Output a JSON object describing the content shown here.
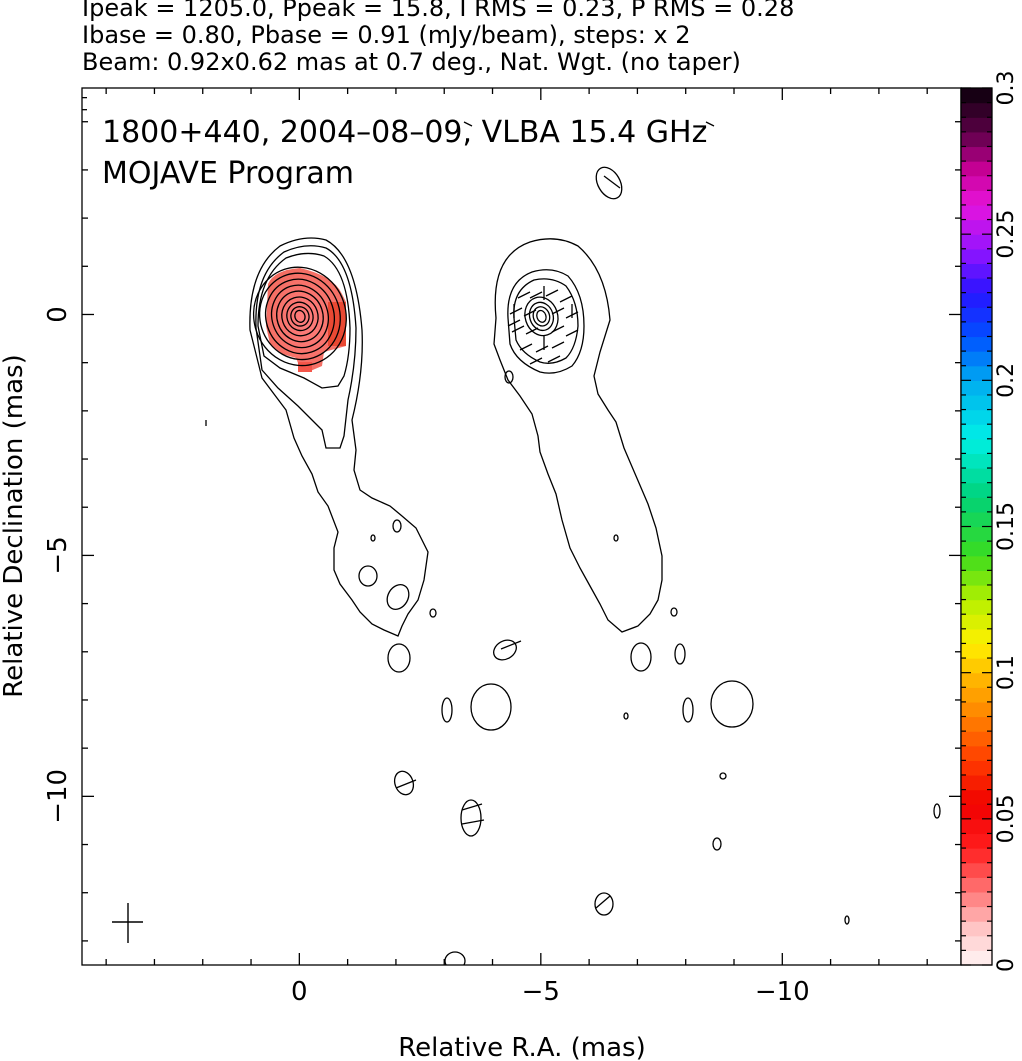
{
  "header": {
    "line1": "Ipeak = 1205.0, Ppeak = 15.8, I RMS = 0.23, P RMS = 0.28",
    "line2": "Ibase = 0.80, Pbase = 0.91 (mJy/beam), steps: x 2",
    "line3": "Beam: 0.92x0.62 mas at 0.7 deg., Nat. Wgt. (no taper)"
  },
  "chart_data": {
    "type": "contour",
    "annotation": {
      "line1": "1800+440, 2004–08–09, VLBA 15.4 GHz",
      "line2": "MOJAVE Program"
    },
    "xlabel": "Relative R.A. (mas)",
    "ylabel": "Relative Declination (mas)",
    "xlim": [
      4.5,
      -13.7
    ],
    "ylim": [
      -13.5,
      4.7
    ],
    "x_ticks": [
      {
        "v": 0,
        "label": "0"
      },
      {
        "v": -5,
        "label": "−5"
      },
      {
        "v": -10,
        "label": "−10"
      }
    ],
    "y_ticks": [
      {
        "v": 0,
        "label": "0"
      },
      {
        "v": -5,
        "label": "−5"
      },
      {
        "v": -10,
        "label": "−10"
      }
    ],
    "colorbar": {
      "range": [
        0,
        0.3
      ],
      "ticks": [
        {
          "v": 0,
          "label": "0"
        },
        {
          "v": 0.05,
          "label": "0.05"
        },
        {
          "v": 0.1,
          "label": "0.1"
        },
        {
          "v": 0.15,
          "label": "0.15"
        },
        {
          "v": 0.2,
          "label": "0.2"
        },
        {
          "v": 0.25,
          "label": "0.25"
        },
        {
          "v": 0.3,
          "label": "0.3"
        }
      ]
    },
    "panels": [
      {
        "name": "total intensity",
        "center": [
          0,
          0
        ],
        "core_rings": 9
      },
      {
        "name": "polarization",
        "center": [
          -5,
          0
        ],
        "core_rings": 4
      }
    ],
    "fractional_pol_patch": {
      "center": [
        0,
        0
      ],
      "level": 0.03
    },
    "beam": {
      "major": 0.92,
      "minor": 0.62,
      "pa_deg": 0.7,
      "position": [
        3.6,
        -12.7
      ]
    },
    "colors": {
      "contour": "#000000",
      "pol_fill": "#ff6a6a",
      "pol_fill_dark": "#e8452d"
    }
  }
}
